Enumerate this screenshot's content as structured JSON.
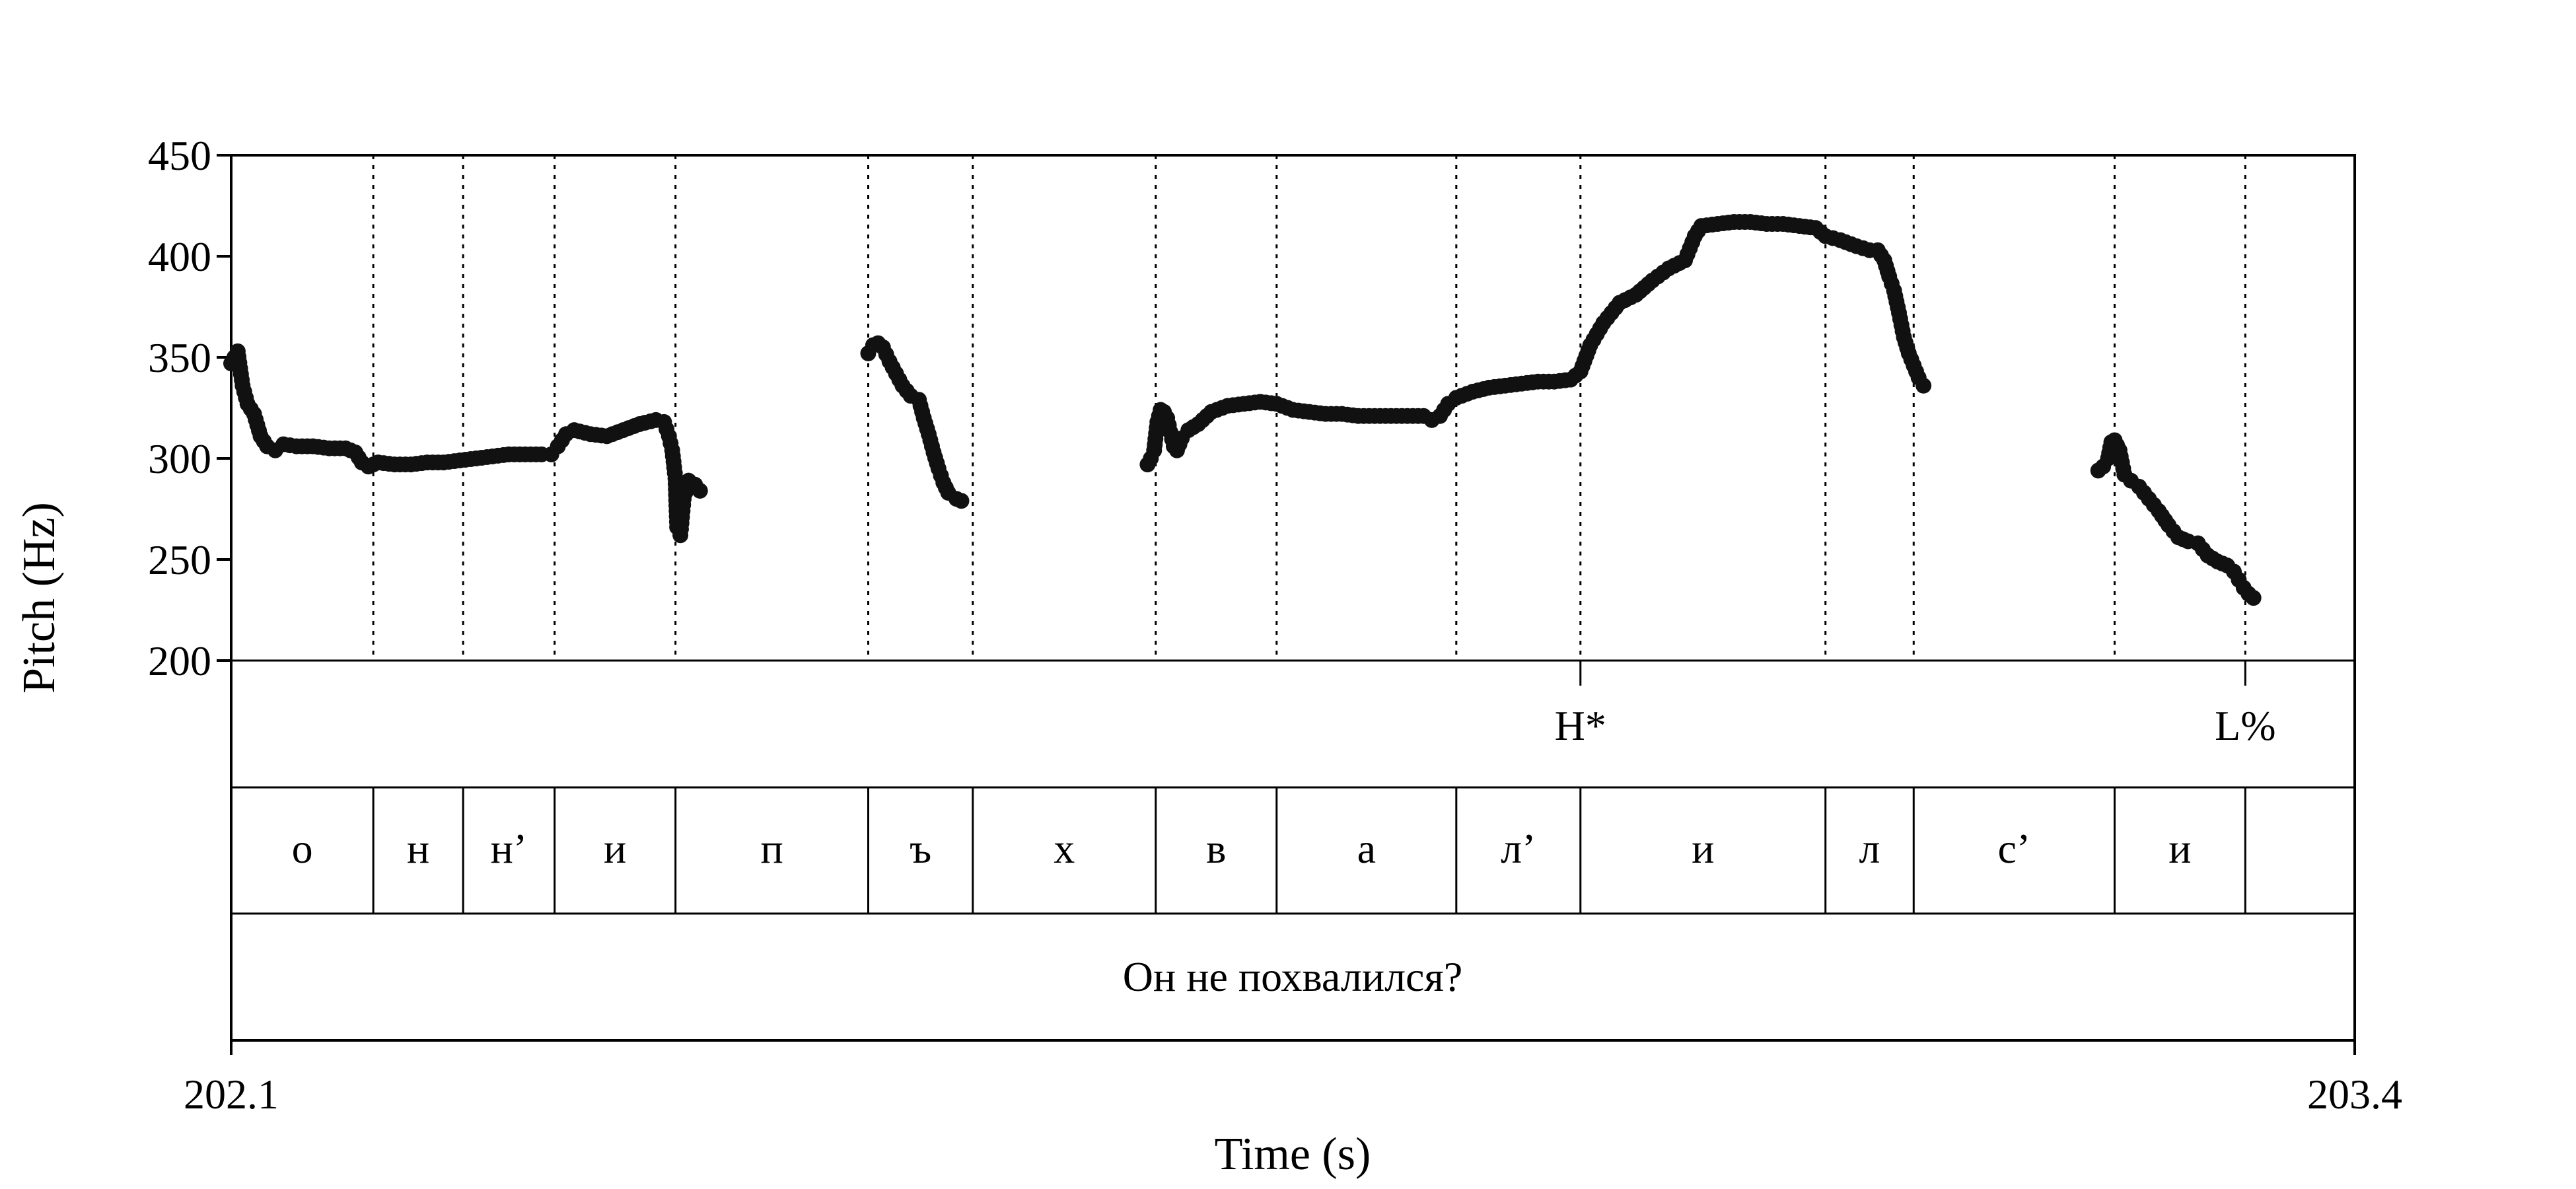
{
  "chart_data": {
    "type": "scatter",
    "xlabel": "Time (s)",
    "ylabel": "Pitch (Hz)",
    "xlim": [
      202.1,
      203.4
    ],
    "ylim": [
      200,
      450
    ],
    "x_ticks": [
      {
        "value": 202.1,
        "label": "202.1"
      },
      {
        "value": 203.4,
        "label": "203.4"
      }
    ],
    "y_ticks": [
      {
        "value": 200,
        "label": "200"
      },
      {
        "value": 250,
        "label": "250"
      },
      {
        "value": 300,
        "label": "300"
      },
      {
        "value": 350,
        "label": "350"
      },
      {
        "value": 400,
        "label": "400"
      },
      {
        "value": 450,
        "label": "450"
      }
    ],
    "segment_boundaries": [
      202.187,
      202.242,
      202.298,
      202.372,
      202.49,
      202.554,
      202.666,
      202.74,
      202.85,
      202.926,
      203.076,
      203.13,
      203.253,
      203.333
    ],
    "segments": [
      {
        "label": "о",
        "start": 202.1,
        "end": 202.187
      },
      {
        "label": "н",
        "start": 202.187,
        "end": 202.242
      },
      {
        "label": "н’",
        "start": 202.242,
        "end": 202.298
      },
      {
        "label": "и",
        "start": 202.298,
        "end": 202.372
      },
      {
        "label": "п",
        "start": 202.372,
        "end": 202.49
      },
      {
        "label": "ъ",
        "start": 202.49,
        "end": 202.554
      },
      {
        "label": "х",
        "start": 202.554,
        "end": 202.666
      },
      {
        "label": "в",
        "start": 202.666,
        "end": 202.74
      },
      {
        "label": "а",
        "start": 202.74,
        "end": 202.85
      },
      {
        "label": "л’",
        "start": 202.85,
        "end": 202.926
      },
      {
        "label": "и",
        "start": 202.926,
        "end": 203.076
      },
      {
        "label": "л",
        "start": 203.076,
        "end": 203.13
      },
      {
        "label": "с’",
        "start": 203.13,
        "end": 203.253
      },
      {
        "label": "и",
        "start": 203.253,
        "end": 203.333
      }
    ],
    "tones": [
      {
        "label": "H*",
        "time": 202.926
      },
      {
        "label": "L%",
        "time": 203.333
      }
    ],
    "sentence": "Он не похвалился?",
    "pitch_contours": [
      [
        [
          202.1,
          347
        ],
        [
          202.104,
          353
        ],
        [
          202.107,
          336
        ],
        [
          202.11,
          327
        ],
        [
          202.114,
          322
        ],
        [
          202.118,
          311
        ],
        [
          202.122,
          306
        ],
        [
          202.127,
          304
        ],
        [
          202.132,
          307
        ],
        [
          202.14,
          306
        ],
        [
          202.15,
          306
        ],
        [
          202.16,
          305
        ],
        [
          202.17,
          305
        ],
        [
          202.176,
          303
        ],
        [
          202.18,
          298
        ],
        [
          202.184,
          296
        ],
        [
          202.19,
          298
        ],
        [
          202.2,
          297
        ],
        [
          202.21,
          297
        ],
        [
          202.22,
          298
        ],
        [
          202.23,
          298
        ],
        [
          202.24,
          299
        ],
        [
          202.25,
          300
        ],
        [
          202.26,
          301
        ],
        [
          202.27,
          302
        ],
        [
          202.28,
          302
        ],
        [
          202.29,
          302
        ],
        [
          202.296,
          302
        ],
        [
          202.3,
          306
        ],
        [
          202.305,
          312
        ],
        [
          202.31,
          314
        ],
        [
          202.32,
          312
        ],
        [
          202.33,
          311
        ],
        [
          202.34,
          314
        ],
        [
          202.35,
          317
        ],
        [
          202.36,
          319
        ],
        [
          202.365,
          318
        ],
        [
          202.368,
          311
        ],
        [
          202.37,
          304
        ],
        [
          202.372,
          290
        ],
        [
          202.373,
          266
        ],
        [
          202.375,
          262
        ],
        [
          202.377,
          280
        ],
        [
          202.38,
          289
        ],
        [
          202.384,
          287
        ],
        [
          202.387,
          284
        ]
      ],
      [
        [
          202.49,
          352
        ],
        [
          202.493,
          356
        ],
        [
          202.496,
          357
        ],
        [
          202.499,
          355
        ],
        [
          202.503,
          348
        ],
        [
          202.507,
          342
        ],
        [
          202.511,
          336
        ],
        [
          202.516,
          331
        ],
        [
          202.521,
          329
        ],
        [
          202.524,
          320
        ],
        [
          202.527,
          312
        ],
        [
          202.53,
          303
        ],
        [
          202.533,
          295
        ],
        [
          202.536,
          288
        ],
        [
          202.539,
          283
        ],
        [
          202.544,
          280
        ],
        [
          202.547,
          279
        ]
      ],
      [
        [
          202.661,
          297
        ],
        [
          202.663,
          300
        ],
        [
          202.665,
          304
        ],
        [
          202.667,
          318
        ],
        [
          202.669,
          324
        ],
        [
          202.671,
          323
        ],
        [
          202.673,
          320
        ],
        [
          202.675,
          313
        ],
        [
          202.677,
          306
        ],
        [
          202.679,
          304
        ],
        [
          202.682,
          310
        ],
        [
          202.686,
          314
        ],
        [
          202.692,
          317
        ],
        [
          202.7,
          323
        ],
        [
          202.71,
          326
        ],
        [
          202.72,
          327
        ],
        [
          202.73,
          328
        ],
        [
          202.74,
          327
        ],
        [
          202.75,
          324
        ],
        [
          202.76,
          323
        ],
        [
          202.77,
          322
        ],
        [
          202.78,
          322
        ],
        [
          202.79,
          321
        ],
        [
          202.8,
          321
        ],
        [
          202.81,
          321
        ],
        [
          202.82,
          321
        ],
        [
          202.83,
          321
        ],
        [
          202.835,
          319
        ],
        [
          202.84,
          321
        ],
        [
          202.845,
          327
        ],
        [
          202.85,
          330
        ],
        [
          202.86,
          333
        ],
        [
          202.87,
          335
        ],
        [
          202.88,
          336
        ],
        [
          202.89,
          337
        ],
        [
          202.9,
          338
        ],
        [
          202.91,
          338
        ],
        [
          202.92,
          339
        ],
        [
          202.926,
          343
        ],
        [
          202.932,
          356
        ],
        [
          202.94,
          367
        ],
        [
          202.95,
          377
        ],
        [
          202.96,
          381
        ],
        [
          202.97,
          388
        ],
        [
          202.98,
          394
        ],
        [
          202.99,
          398
        ],
        [
          202.996,
          410
        ],
        [
          203.0,
          415
        ],
        [
          203.01,
          416
        ],
        [
          203.02,
          417
        ],
        [
          203.03,
          417
        ],
        [
          203.04,
          416
        ],
        [
          203.05,
          416
        ],
        [
          203.06,
          415
        ],
        [
          203.07,
          414
        ],
        [
          203.076,
          410
        ],
        [
          203.085,
          408
        ],
        [
          203.095,
          405
        ],
        [
          203.103,
          403
        ],
        [
          203.108,
          403
        ],
        [
          203.112,
          398
        ],
        [
          203.115,
          390
        ],
        [
          203.118,
          383
        ],
        [
          203.121,
          372
        ],
        [
          203.124,
          360
        ],
        [
          203.127,
          352
        ],
        [
          203.13,
          346
        ],
        [
          203.133,
          340
        ],
        [
          203.136,
          336
        ]
      ],
      [
        [
          203.243,
          294
        ],
        [
          203.246,
          296
        ],
        [
          203.249,
          300
        ],
        [
          203.251,
          308
        ],
        [
          203.253,
          309
        ],
        [
          203.256,
          304
        ],
        [
          203.259,
          292
        ],
        [
          203.263,
          289
        ],
        [
          203.268,
          286
        ],
        [
          203.274,
          280
        ],
        [
          203.28,
          274
        ],
        [
          203.286,
          267
        ],
        [
          203.292,
          261
        ],
        [
          203.298,
          259
        ],
        [
          203.304,
          258
        ],
        [
          203.31,
          252
        ],
        [
          203.316,
          249
        ],
        [
          203.322,
          247
        ],
        [
          203.326,
          244
        ],
        [
          203.329,
          240
        ],
        [
          203.332,
          236
        ],
        [
          203.335,
          233
        ],
        [
          203.338,
          231
        ]
      ]
    ]
  }
}
